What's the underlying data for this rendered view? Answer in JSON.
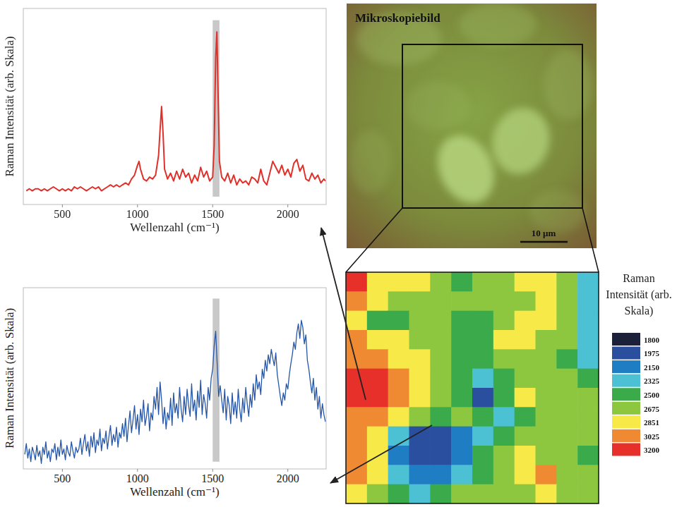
{
  "chart_data": [
    {
      "type": "line",
      "xlabel": "Wellenzahl (cm⁻¹)",
      "ylabel": "Raman Intensität (arb. Skala)",
      "color": "#e0302a",
      "xlim": [
        240,
        2255
      ],
      "ylim": [
        0,
        100
      ],
      "xticks": [
        500,
        1000,
        1500,
        2000
      ],
      "tick_labels": "x",
      "grid": false,
      "band": [
        1500,
        1545
      ],
      "x": [
        260,
        280,
        300,
        320,
        340,
        360,
        380,
        400,
        420,
        440,
        460,
        480,
        500,
        520,
        540,
        560,
        580,
        600,
        620,
        640,
        660,
        680,
        700,
        720,
        740,
        760,
        780,
        800,
        820,
        840,
        860,
        880,
        900,
        920,
        940,
        960,
        980,
        1000,
        1010,
        1020,
        1040,
        1060,
        1080,
        1100,
        1120,
        1140,
        1150,
        1160,
        1170,
        1180,
        1200,
        1220,
        1240,
        1260,
        1280,
        1300,
        1320,
        1340,
        1360,
        1380,
        1400,
        1420,
        1440,
        1460,
        1480,
        1500,
        1510,
        1520,
        1528,
        1535,
        1545,
        1560,
        1580,
        1600,
        1620,
        1640,
        1660,
        1680,
        1700,
        1720,
        1740,
        1760,
        1780,
        1800,
        1820,
        1840,
        1860,
        1880,
        1900,
        1920,
        1940,
        1960,
        1980,
        2000,
        2020,
        2040,
        2060,
        2080,
        2100,
        2120,
        2140,
        2160,
        2180,
        2200,
        2220,
        2240,
        2250
      ],
      "values": [
        7,
        8,
        7,
        8,
        8,
        7,
        8,
        7,
        8,
        9,
        8,
        7,
        8,
        7,
        8,
        7,
        9,
        8,
        9,
        8,
        7,
        8,
        9,
        8,
        9,
        7,
        8,
        9,
        10,
        9,
        10,
        9,
        10,
        11,
        10,
        13,
        15,
        20,
        22,
        18,
        13,
        12,
        14,
        13,
        15,
        25,
        38,
        50,
        36,
        18,
        13,
        16,
        12,
        17,
        13,
        18,
        14,
        16,
        11,
        15,
        12,
        19,
        14,
        17,
        12,
        14,
        30,
        75,
        88,
        60,
        22,
        14,
        12,
        16,
        11,
        15,
        10,
        13,
        11,
        12,
        10,
        14,
        13,
        11,
        18,
        12,
        10,
        16,
        22,
        19,
        16,
        20,
        15,
        18,
        14,
        21,
        23,
        17,
        20,
        13,
        12,
        16,
        13,
        15,
        11,
        13,
        12
      ]
    },
    {
      "type": "line",
      "xlabel": "Wellenzahl (cm⁻¹)",
      "ylabel": "Raman Intensität (arb. Skala)",
      "color": "#2656a8",
      "xlim": [
        240,
        2255
      ],
      "ylim": [
        0,
        100
      ],
      "xticks": [
        500,
        1000,
        1500,
        2000
      ],
      "tick_labels": "x",
      "grid": false,
      "band": [
        1500,
        1545
      ],
      "x": [
        250,
        260,
        270,
        280,
        290,
        300,
        310,
        320,
        330,
        340,
        350,
        360,
        370,
        380,
        390,
        400,
        410,
        420,
        430,
        440,
        450,
        460,
        470,
        480,
        490,
        500,
        510,
        520,
        530,
        540,
        550,
        560,
        570,
        580,
        590,
        600,
        610,
        620,
        630,
        640,
        650,
        660,
        670,
        680,
        690,
        700,
        710,
        720,
        730,
        740,
        750,
        760,
        770,
        780,
        790,
        800,
        810,
        820,
        830,
        840,
        850,
        860,
        870,
        880,
        890,
        900,
        910,
        920,
        930,
        940,
        950,
        960,
        970,
        980,
        990,
        1000,
        1010,
        1020,
        1030,
        1040,
        1050,
        1060,
        1070,
        1080,
        1090,
        1100,
        1110,
        1120,
        1130,
        1140,
        1150,
        1160,
        1170,
        1180,
        1190,
        1200,
        1210,
        1220,
        1230,
        1240,
        1250,
        1260,
        1270,
        1280,
        1290,
        1300,
        1310,
        1320,
        1330,
        1340,
        1350,
        1360,
        1370,
        1380,
        1390,
        1400,
        1410,
        1420,
        1430,
        1440,
        1450,
        1460,
        1470,
        1480,
        1490,
        1500,
        1510,
        1520,
        1530,
        1540,
        1550,
        1560,
        1570,
        1580,
        1590,
        1600,
        1610,
        1620,
        1630,
        1640,
        1650,
        1660,
        1670,
        1680,
        1690,
        1700,
        1710,
        1720,
        1730,
        1740,
        1750,
        1760,
        1770,
        1780,
        1790,
        1800,
        1810,
        1820,
        1830,
        1840,
        1850,
        1860,
        1870,
        1880,
        1890,
        1900,
        1910,
        1920,
        1930,
        1940,
        1950,
        1960,
        1970,
        1980,
        1990,
        2000,
        2010,
        2020,
        2030,
        2040,
        2050,
        2060,
        2070,
        2080,
        2090,
        2100,
        2110,
        2120,
        2130,
        2140,
        2150,
        2160,
        2170,
        2180,
        2190,
        2200,
        2210,
        2220,
        2230,
        2240,
        2250
      ],
      "values": [
        8,
        14,
        6,
        11,
        4,
        12,
        9,
        5,
        13,
        7,
        10,
        3,
        12,
        8,
        15,
        6,
        10,
        4,
        11,
        9,
        14,
        5,
        12,
        7,
        16,
        8,
        11,
        5,
        13,
        9,
        7,
        15,
        10,
        6,
        12,
        9,
        11,
        17,
        8,
        14,
        19,
        10,
        15,
        7,
        18,
        12,
        20,
        9,
        16,
        13,
        22,
        10,
        17,
        14,
        21,
        11,
        18,
        24,
        13,
        19,
        15,
        23,
        12,
        20,
        17,
        25,
        18,
        28,
        15,
        24,
        32,
        20,
        27,
        35,
        22,
        30,
        19,
        33,
        26,
        38,
        24,
        29,
        36,
        21,
        31,
        27,
        40,
        33,
        45,
        30,
        48,
        38,
        25,
        34,
        22,
        31,
        27,
        39,
        24,
        42,
        31,
        36,
        28,
        45,
        33,
        26,
        40,
        30,
        44,
        35,
        29,
        47,
        32,
        38,
        27,
        43,
        34,
        49,
        30,
        41,
        36,
        28,
        45,
        38,
        50,
        55,
        68,
        76,
        58,
        40,
        46,
        38,
        31,
        44,
        27,
        40,
        35,
        25,
        42,
        30,
        37,
        28,
        44,
        33,
        26,
        39,
        31,
        45,
        36,
        29,
        41,
        34,
        47,
        38,
        52,
        44,
        48,
        41,
        55,
        50,
        60,
        54,
        63,
        58,
        66,
        61,
        57,
        64,
        52,
        46,
        40,
        35,
        42,
        38,
        47,
        44,
        52,
        58,
        63,
        70,
        66,
        75,
        80,
        72,
        82,
        78,
        69,
        74,
        60,
        55,
        48,
        42,
        50,
        38,
        45,
        33,
        40,
        28,
        36,
        30,
        26
      ]
    },
    {
      "type": "heatmap",
      "tick_labels": false,
      "cells": [
        [
          3150,
          2850,
          2860,
          2840,
          2700,
          2520,
          2680,
          2690,
          2850,
          2840,
          2660,
          2330
        ],
        [
          3000,
          2860,
          2680,
          2690,
          2670,
          2700,
          2680,
          2690,
          2700,
          2850,
          2670,
          2330
        ],
        [
          2850,
          2510,
          2500,
          2680,
          2680,
          2520,
          2510,
          2690,
          2850,
          2860,
          2670,
          2330
        ],
        [
          3010,
          2840,
          2860,
          2690,
          2680,
          2500,
          2520,
          2850,
          2840,
          2680,
          2660,
          2340
        ],
        [
          3030,
          3000,
          2860,
          2850,
          2680,
          2500,
          2510,
          2690,
          2680,
          2670,
          2520,
          2330
        ],
        [
          3180,
          3150,
          3020,
          2850,
          2690,
          2510,
          2320,
          2520,
          2680,
          2690,
          2670,
          2520
        ],
        [
          3200,
          3170,
          3030,
          2860,
          2680,
          2500,
          1980,
          2510,
          2850,
          2690,
          2680,
          2660
        ],
        [
          3010,
          3020,
          2850,
          2680,
          2510,
          2690,
          2500,
          2330,
          2510,
          2680,
          2690,
          2670
        ],
        [
          3030,
          2850,
          2330,
          1990,
          1980,
          2140,
          2330,
          2510,
          2680,
          2690,
          2680,
          2660
        ],
        [
          3020,
          2860,
          2150,
          1970,
          1960,
          2160,
          2500,
          2680,
          2850,
          2690,
          2680,
          2520
        ],
        [
          3000,
          2850,
          2340,
          2160,
          2140,
          2330,
          2510,
          2680,
          2860,
          3020,
          2690,
          2670
        ],
        [
          2850,
          2690,
          2520,
          2330,
          2510,
          2680,
          2690,
          2680,
          2690,
          2850,
          2680,
          2660
        ]
      ],
      "colorbar": {
        "title": "Raman Intensität (arb. Skala)",
        "ticks": [
          1800,
          1975,
          2150,
          2325,
          2500,
          2675,
          2851,
          3025,
          3200
        ],
        "colors": [
          "#1c2038",
          "#2a4f9e",
          "#1f7dc4",
          "#4cc1d4",
          "#3aaa4a",
          "#8dc63f",
          "#f7e948",
          "#f08a32",
          "#e8302a"
        ]
      }
    }
  ],
  "microscopy": {
    "title": "Mikroskopiebild",
    "scale_bar": "10 µm"
  }
}
